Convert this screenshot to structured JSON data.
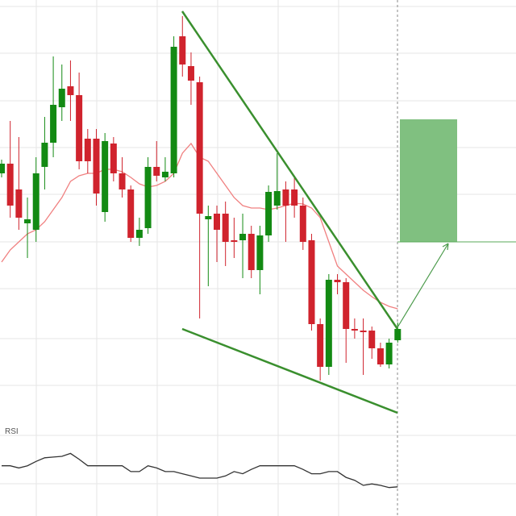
{
  "chart_data": {
    "type": "candlestick",
    "up_color": "#138a13",
    "down_color": "#d0232d",
    "sma_color": "#f08080",
    "rsi_color": "#333333",
    "open": [
      305,
      317,
      285,
      243,
      235,
      313,
      343,
      387,
      413,
      402,
      348,
      348,
      257,
      342,
      305,
      285,
      225,
      237,
      313,
      300,
      305,
      475,
      438,
      418,
      248,
      255,
      255,
      222,
      222,
      230,
      185,
      228,
      265,
      285,
      285,
      265,
      222,
      118,
      65,
      173,
      170,
      112,
      110,
      110,
      88,
      68,
      98
    ],
    "high": [
      322,
      370,
      350,
      275,
      325,
      375,
      450,
      440,
      445,
      430,
      360,
      360,
      355,
      350,
      325,
      290,
      250,
      325,
      345,
      325,
      475,
      500,
      455,
      425,
      265,
      265,
      270,
      250,
      255,
      240,
      240,
      290,
      330,
      295,
      300,
      275,
      230,
      125,
      180,
      180,
      175,
      125,
      125,
      115,
      95,
      100,
      120
    ],
    "low": [
      300,
      250,
      235,
      200,
      220,
      285,
      325,
      370,
      370,
      310,
      305,
      265,
      245,
      295,
      275,
      220,
      215,
      230,
      295,
      295,
      300,
      425,
      390,
      125,
      165,
      195,
      190,
      200,
      175,
      175,
      155,
      220,
      260,
      220,
      250,
      210,
      110,
      48,
      55,
      155,
      70,
      100,
      55,
      75,
      65,
      63,
      95
    ],
    "close": [
      317,
      265,
      250,
      248,
      305,
      343,
      390,
      410,
      402,
      320,
      320,
      280,
      345,
      305,
      285,
      225,
      235,
      313,
      302,
      307,
      462,
      440,
      420,
      255,
      252,
      235,
      220,
      220,
      230,
      185,
      228,
      282,
      283,
      265,
      265,
      220,
      118,
      65,
      173,
      170,
      112,
      110,
      108,
      88,
      68,
      95,
      112
    ],
    "sma": [
      195,
      210,
      220,
      230,
      235,
      245,
      260,
      275,
      295,
      302,
      305,
      305,
      310,
      310,
      307,
      300,
      292,
      288,
      290,
      295,
      305,
      330,
      342,
      325,
      320,
      305,
      290,
      275,
      265,
      262,
      262,
      260,
      262,
      265,
      268,
      267,
      262,
      250,
      220,
      190,
      180,
      170,
      160,
      152,
      145,
      140,
      137
    ],
    "ylim": [
      0,
      520
    ],
    "rsi_label": "RSI",
    "rsi": [
      47,
      47,
      44,
      47,
      53,
      58,
      59,
      60,
      64,
      56,
      47,
      47,
      47,
      47,
      47,
      39,
      39,
      47,
      44,
      39,
      39,
      36,
      33,
      30,
      30,
      30,
      33,
      39,
      36,
      42,
      47,
      47,
      47,
      47,
      47,
      42,
      36,
      36,
      39,
      39,
      31,
      27,
      20,
      22,
      20,
      17,
      18
    ],
    "rsi_ylim": [
      0,
      100
    ]
  }
}
